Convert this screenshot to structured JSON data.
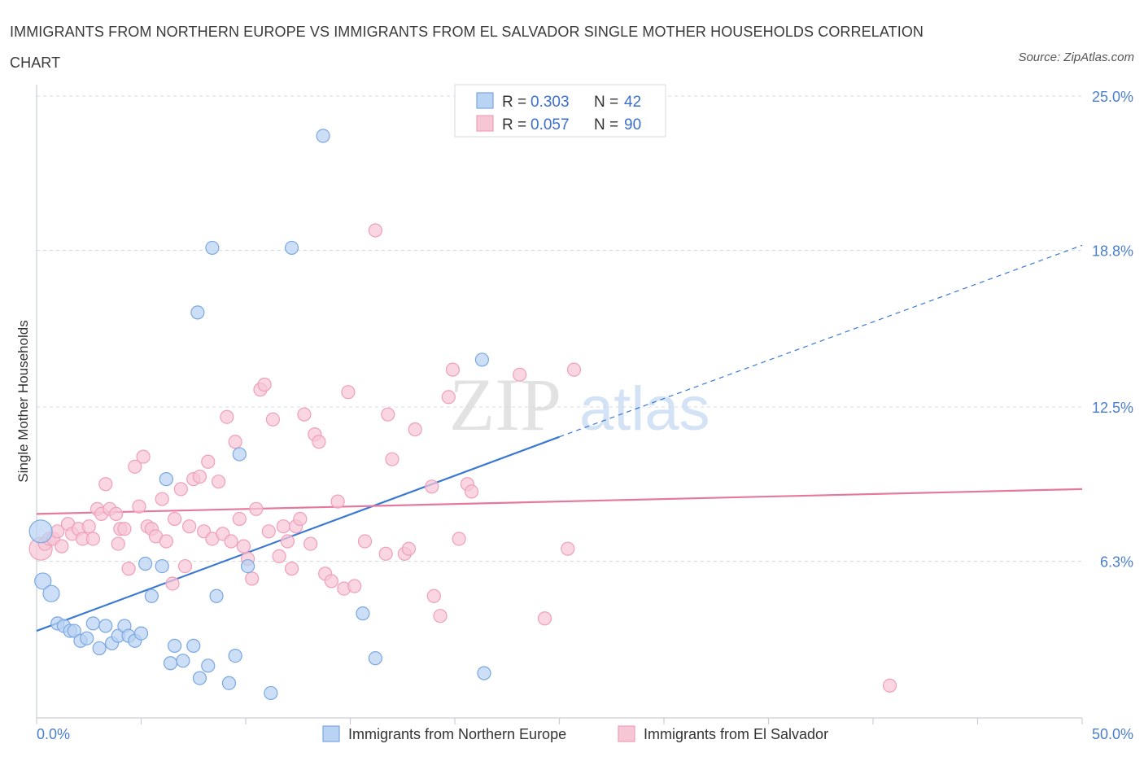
{
  "title": "IMMIGRANTS FROM NORTHERN EUROPE VS IMMIGRANTS FROM EL SALVADOR SINGLE MOTHER HOUSEHOLDS CORRELATION CHART",
  "source": "Source: ZipAtlas.com",
  "watermark": {
    "zip": "ZIP",
    "atlas": "atlas"
  },
  "colors": {
    "blue": "#3a78d4",
    "blue_fill": "#b9d3f3",
    "blue_stroke": "#7aa7e2",
    "pink": "#e5789c",
    "pink_fill": "#f7c6d5",
    "pink_stroke": "#ef9fba",
    "grid": "#d5dbe4",
    "tick_text": "#4a7fcf"
  },
  "legend": {
    "rows": [
      {
        "r_label": "R = ",
        "r_value": "0.303",
        "n_label": "N = ",
        "n_value": "42"
      },
      {
        "r_label": "R = ",
        "r_value": "0.057",
        "n_label": "N = ",
        "n_value": "90"
      }
    ]
  },
  "chart_data": {
    "type": "scatter",
    "title": "IMMIGRANTS FROM NORTHERN EUROPE VS IMMIGRANTS FROM EL SALVADOR SINGLE MOTHER HOUSEHOLDS CORRELATION CHART",
    "xlabel": "",
    "ylabel": "Single Mother Households",
    "xlim": [
      0,
      50
    ],
    "ylim": [
      0,
      25
    ],
    "x_tick_labels": [
      "0.0%",
      "50.0%"
    ],
    "y_ticks": [
      6.3,
      12.5,
      18.8,
      25.0
    ],
    "y_tick_labels": [
      "6.3%",
      "12.5%",
      "18.8%",
      "25.0%"
    ],
    "grid": true,
    "legend_position": "top-center",
    "series": [
      {
        "name": "Immigrants from Northern Europe",
        "color": "#3a78d4",
        "r": 0.303,
        "n": 42,
        "trend": {
          "x0": 0,
          "y0": 3.5,
          "x1": 25,
          "y1": 11.3,
          "dashed_to_x": 50,
          "dashed_to_y": 19.0
        },
        "points": [
          [
            0.2,
            7.5,
            "l"
          ],
          [
            0.3,
            5.5,
            "m"
          ],
          [
            0.7,
            5.0,
            "m"
          ],
          [
            1.0,
            3.8
          ],
          [
            1.3,
            3.7
          ],
          [
            1.6,
            3.5
          ],
          [
            1.8,
            3.5
          ],
          [
            2.1,
            3.1
          ],
          [
            2.4,
            3.2
          ],
          [
            2.7,
            3.8
          ],
          [
            3.0,
            2.8
          ],
          [
            3.3,
            3.7
          ],
          [
            3.6,
            3.0
          ],
          [
            3.9,
            3.3
          ],
          [
            4.2,
            3.7
          ],
          [
            4.4,
            3.3
          ],
          [
            4.7,
            3.1
          ],
          [
            5.0,
            3.4
          ],
          [
            5.2,
            6.2
          ],
          [
            5.5,
            4.9
          ],
          [
            6.0,
            6.1
          ],
          [
            6.2,
            9.6
          ],
          [
            6.4,
            2.2
          ],
          [
            6.6,
            2.9
          ],
          [
            7.0,
            2.3
          ],
          [
            7.5,
            2.9
          ],
          [
            7.7,
            16.3
          ],
          [
            7.8,
            1.6
          ],
          [
            8.2,
            2.1
          ],
          [
            8.4,
            18.9
          ],
          [
            8.6,
            4.9
          ],
          [
            9.2,
            1.4
          ],
          [
            9.5,
            2.5
          ],
          [
            9.7,
            10.6
          ],
          [
            10.1,
            6.1
          ],
          [
            11.2,
            1.0
          ],
          [
            12.2,
            18.9
          ],
          [
            13.7,
            23.4
          ],
          [
            15.6,
            4.2
          ],
          [
            16.2,
            2.4
          ],
          [
            21.3,
            14.4
          ],
          [
            21.4,
            1.8
          ]
        ]
      },
      {
        "name": "Immigrants from El Salvador",
        "color": "#e5789c",
        "r": 0.057,
        "n": 90,
        "trend": {
          "x0": 0,
          "y0": 8.2,
          "x1": 50,
          "y1": 9.2
        },
        "points": [
          [
            0.2,
            6.8,
            "l"
          ],
          [
            0.4,
            7.0
          ],
          [
            0.6,
            7.2
          ],
          [
            0.8,
            7.2
          ],
          [
            1.0,
            7.5
          ],
          [
            1.2,
            6.9
          ],
          [
            1.5,
            7.8
          ],
          [
            1.7,
            7.4
          ],
          [
            2.0,
            7.6
          ],
          [
            2.2,
            7.2
          ],
          [
            2.5,
            7.7
          ],
          [
            2.7,
            7.2
          ],
          [
            2.9,
            8.4
          ],
          [
            3.1,
            8.2
          ],
          [
            3.3,
            9.4
          ],
          [
            3.5,
            8.4
          ],
          [
            3.8,
            8.2
          ],
          [
            4.0,
            7.6
          ],
          [
            4.2,
            7.6
          ],
          [
            4.4,
            6.0
          ],
          [
            4.7,
            10.1
          ],
          [
            4.9,
            8.5
          ],
          [
            5.1,
            10.5
          ],
          [
            5.3,
            7.7
          ],
          [
            5.5,
            7.6
          ],
          [
            5.7,
            7.3
          ],
          [
            6.0,
            8.8
          ],
          [
            6.2,
            7.1
          ],
          [
            6.5,
            5.4
          ],
          [
            6.6,
            8.0
          ],
          [
            6.9,
            9.2
          ],
          [
            7.1,
            6.1
          ],
          [
            7.3,
            7.7
          ],
          [
            7.5,
            9.6
          ],
          [
            7.8,
            9.7
          ],
          [
            8.0,
            7.5
          ],
          [
            8.2,
            10.3
          ],
          [
            8.4,
            7.2
          ],
          [
            8.7,
            9.5
          ],
          [
            8.9,
            7.4
          ],
          [
            9.1,
            12.1
          ],
          [
            9.3,
            7.1
          ],
          [
            9.5,
            11.1
          ],
          [
            9.7,
            8.0
          ],
          [
            9.9,
            6.9
          ],
          [
            10.1,
            6.4
          ],
          [
            10.3,
            5.6
          ],
          [
            10.5,
            8.4
          ],
          [
            10.7,
            13.2
          ],
          [
            10.9,
            13.4
          ],
          [
            11.1,
            7.5
          ],
          [
            11.3,
            12.0
          ],
          [
            11.6,
            6.5
          ],
          [
            11.8,
            7.7
          ],
          [
            12.0,
            7.1
          ],
          [
            12.2,
            6.0
          ],
          [
            12.4,
            7.7
          ],
          [
            12.6,
            8.0
          ],
          [
            12.8,
            12.2
          ],
          [
            13.1,
            7.0
          ],
          [
            13.3,
            11.4
          ],
          [
            13.5,
            11.1
          ],
          [
            13.8,
            5.8
          ],
          [
            14.1,
            5.5
          ],
          [
            14.4,
            8.7
          ],
          [
            14.7,
            5.2
          ],
          [
            14.9,
            13.1
          ],
          [
            15.2,
            5.3
          ],
          [
            15.7,
            7.1
          ],
          [
            16.2,
            19.6
          ],
          [
            16.7,
            6.6
          ],
          [
            16.8,
            12.2
          ],
          [
            17.0,
            10.4
          ],
          [
            17.6,
            6.6
          ],
          [
            17.8,
            6.8
          ],
          [
            18.1,
            11.6
          ],
          [
            18.9,
            9.3
          ],
          [
            19.0,
            4.9
          ],
          [
            19.3,
            4.1
          ],
          [
            19.7,
            12.9
          ],
          [
            19.9,
            14.0
          ],
          [
            20.2,
            7.2
          ],
          [
            20.6,
            9.4
          ],
          [
            20.8,
            9.1
          ],
          [
            23.1,
            13.8
          ],
          [
            24.3,
            4.0
          ],
          [
            25.4,
            6.8
          ],
          [
            25.7,
            14.0
          ],
          [
            40.8,
            1.3
          ],
          [
            3.9,
            7.0
          ]
        ]
      }
    ]
  }
}
